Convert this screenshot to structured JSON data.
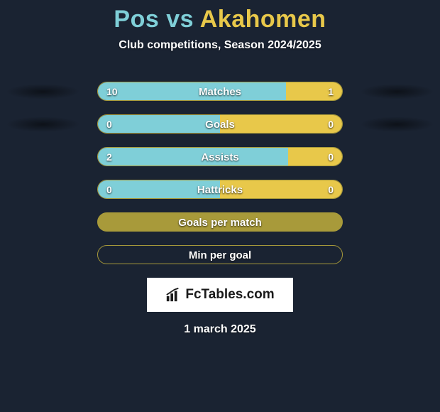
{
  "background_color": "#1a2332",
  "title": {
    "left_name": "Pos",
    "vs": " vs ",
    "right_name": "Akahomen",
    "left_color": "#7fcfd8",
    "right_color": "#e8c84a",
    "fontsize": 34
  },
  "subtitle": "Club competitions, Season 2024/2025",
  "left_color": "#7fcfd8",
  "right_color": "#e8c84a",
  "border_color": "#a89a3a",
  "stat_bars": [
    {
      "label": "Matches",
      "left_value": "10",
      "right_value": "1",
      "left_pct": 77,
      "right_pct": 23,
      "show_values": true,
      "show_shadows": true
    },
    {
      "label": "Goals",
      "left_value": "0",
      "right_value": "0",
      "left_pct": 50,
      "right_pct": 50,
      "show_values": true,
      "show_shadows": true
    },
    {
      "label": "Assists",
      "left_value": "2",
      "right_value": "0",
      "left_pct": 78,
      "right_pct": 22,
      "show_values": true,
      "show_shadows": false
    },
    {
      "label": "Hattricks",
      "left_value": "0",
      "right_value": "0",
      "left_pct": 50,
      "right_pct": 50,
      "show_values": true,
      "show_shadows": false
    },
    {
      "label": "Goals per match",
      "left_value": "",
      "right_value": "",
      "left_pct": 100,
      "right_pct": 0,
      "show_values": false,
      "show_shadows": false,
      "single_color": "#a89a3a"
    },
    {
      "label": "Min per goal",
      "left_value": "",
      "right_value": "",
      "left_pct": 0,
      "right_pct": 0,
      "show_values": false,
      "show_shadows": false,
      "empty": true
    }
  ],
  "logo_text": "FcTables.com",
  "date": "1 march 2025"
}
